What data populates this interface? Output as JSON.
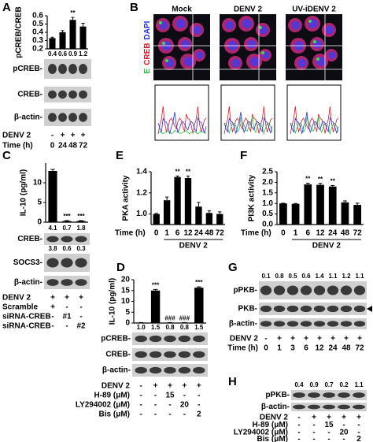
{
  "chart_data": [
    {
      "type": "bar",
      "panel": "A",
      "y_label": "pCREB/CREB",
      "color": "#000000",
      "values": [
        0.33,
        0.4,
        0.55,
        0.47
      ],
      "errors": [
        0.01,
        0.02,
        0.03,
        0.04
      ],
      "annotations": [
        null,
        null,
        "**",
        null
      ],
      "ylim": [
        0.2,
        0.6
      ],
      "yticks": [
        0.2,
        0.3,
        0.4,
        0.5,
        0.6
      ]
    },
    {
      "type": "bar",
      "panel": "C",
      "y_label": "IL-10 (pg/ml)",
      "color": "#000000",
      "values": [
        13,
        0.3,
        0.3
      ],
      "errors": [
        0.4,
        0.1,
        0.1
      ],
      "annotations": [
        null,
        "***",
        "***"
      ],
      "ylim": [
        0,
        15
      ],
      "yticks": [
        0,
        5,
        10
      ]
    },
    {
      "type": "bar",
      "panel": "E",
      "y_label": "PKA activity",
      "x_label": "Time (h)",
      "group_label": "DENV 2",
      "color": "#000000",
      "categories": [
        "0",
        "1",
        "6",
        "12",
        "24",
        "48",
        "72"
      ],
      "values": [
        1.0,
        1.13,
        1.35,
        1.34,
        1.07,
        1.01,
        1.0
      ],
      "errors": [
        0.005,
        0.03,
        0.01,
        0.02,
        0.04,
        0.02,
        0.02
      ],
      "annotations": [
        null,
        null,
        "**",
        "**",
        null,
        null,
        null
      ],
      "ylim": [
        0.9,
        1.4
      ],
      "yticks": [
        {
          "value": 1,
          "label": "1.0"
        },
        1.2,
        1.4
      ]
    },
    {
      "type": "bar",
      "panel": "F",
      "y_label": "PI3K activity",
      "x_label": "Time (h)",
      "group_label": "DENV 2",
      "color": "#000000",
      "categories": [
        "0",
        "1",
        "6",
        "12",
        "24",
        "48",
        "72"
      ],
      "values": [
        1.0,
        0.98,
        1.9,
        1.88,
        1.8,
        1.05,
        0.93
      ],
      "errors": [
        0.01,
        0.02,
        0.06,
        0.07,
        0.05,
        0.07,
        0.08
      ],
      "annotations": [
        null,
        null,
        "**",
        "**",
        "**",
        null,
        null
      ],
      "ylim": [
        0,
        2.5
      ],
      "yticks": [
        {
          "value": 0,
          "label": "0.0"
        },
        0.5,
        {
          "value": 1,
          "label": "1.0"
        },
        1.5,
        {
          "value": 2,
          "label": "2.0"
        },
        2.5
      ]
    },
    {
      "type": "bar",
      "panel": "D",
      "y_label": "IL-10 (pg/ml)",
      "color": "#000000",
      "values": [
        0.2,
        15,
        0.2,
        0.2,
        16.3
      ],
      "errors": [
        0.05,
        0.5,
        0.05,
        0.05,
        0.4
      ],
      "annotations": [
        null,
        "***",
        "###",
        "###",
        "***"
      ],
      "ylim": [
        0,
        20
      ],
      "yticks": [
        0,
        5,
        10,
        15,
        20
      ]
    }
  ],
  "micro": {
    "label": "B",
    "columns": [
      "Mock",
      "DENV 2",
      "UV-iDENV 2"
    ],
    "stains": [
      {
        "text": "E",
        "color": "#22c43a"
      },
      {
        "text": "CREB",
        "color": "#e8141e"
      },
      {
        "text": "DAPI",
        "color": "#2233ee"
      }
    ]
  },
  "blots": {
    "A": {
      "ratios": [
        "0.4",
        "0.6",
        "0.9",
        "1.2"
      ],
      "bands": [
        "pCREB-",
        "CREB-",
        "β-actin-"
      ],
      "rows": [
        {
          "label": "DENV 2",
          "cells": [
            "-",
            "+",
            "+",
            "+"
          ]
        },
        {
          "label": "Time (h)",
          "cells": [
            "0",
            "24",
            "48",
            "72"
          ]
        }
      ]
    },
    "C": {
      "ratios": [
        "4.1",
        "0.7",
        "1.8"
      ],
      "ratios2": [
        "3.8",
        "0.6",
        "0.3"
      ],
      "bands": [
        "CREB-",
        "SOCS3-",
        "β-actin-"
      ],
      "rows": [
        {
          "label": "DENV 2",
          "cells": [
            "+",
            "+",
            "+"
          ]
        },
        {
          "label": "Scramble",
          "cells": [
            "+",
            "-",
            "-"
          ]
        },
        {
          "label": "siRNA-CREB",
          "cells": [
            "-",
            "#1",
            "-"
          ]
        },
        {
          "label": "siRNA-CREB",
          "cells": [
            "-",
            "-",
            "#2"
          ]
        }
      ]
    },
    "D": {
      "ratios": [
        "1.0",
        "1.5",
        "0.8",
        "0.8",
        "1.5"
      ],
      "bands": [
        "pCREB-",
        "CREB-",
        "β-actin-"
      ],
      "rows": [
        {
          "label": "DENV 2",
          "cells": [
            "-",
            "+",
            "+",
            "+",
            "+"
          ]
        },
        {
          "label": "H-89 (μM)",
          "cells": [
            "-",
            "-",
            "15",
            "-",
            "-"
          ]
        },
        {
          "label": "LY294002 (μM)",
          "cells": [
            "-",
            "-",
            "-",
            "20",
            "-"
          ]
        },
        {
          "label": "Bis (μM)",
          "cells": [
            "-",
            "-",
            "-",
            "-",
            "2"
          ]
        }
      ]
    },
    "G": {
      "label": "G",
      "ratios": [
        "0.1",
        "0.8",
        "0.5",
        "0.6",
        "1.4",
        "1.1",
        "1.2",
        "1.1"
      ],
      "bands": [
        "pPKB-",
        "PKB-",
        "β-actin-"
      ],
      "rows": [
        {
          "label": "DENV 2",
          "cells": [
            "-",
            "+",
            "+",
            "+",
            "+",
            "+",
            "+",
            "+"
          ]
        },
        {
          "label": "Time (h)",
          "cells": [
            "0",
            "1",
            "3",
            "6",
            "12",
            "24",
            "48",
            "72"
          ]
        }
      ]
    },
    "H": {
      "label": "H",
      "ratios": [
        "0.4",
        "0.9",
        "0.7",
        "0.2",
        "1.1"
      ],
      "bands": [
        "pPKB-",
        "β-actin-"
      ],
      "rows": [
        {
          "label": "DENV 2",
          "cells": [
            "-",
            "+",
            "+",
            "+",
            "+"
          ]
        },
        {
          "label": "H-89 (μM)",
          "cells": [
            "-",
            "-",
            "15",
            "-",
            "-"
          ]
        },
        {
          "label": "LY294002 (μM)",
          "cells": [
            "-",
            "-",
            "-",
            "20",
            "-"
          ]
        },
        {
          "label": "Bis (μM)",
          "cells": [
            "-",
            "-",
            "-",
            "-",
            "2"
          ]
        }
      ]
    }
  }
}
